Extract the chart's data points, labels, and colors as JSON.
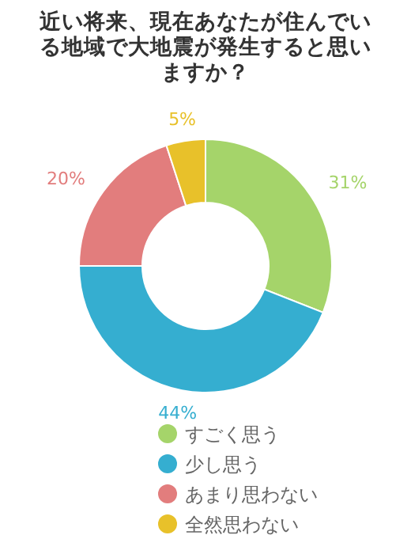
{
  "chart_data": {
    "type": "donut",
    "title": "近い将来、現在あなたが住んでいる地域で大地震が発生すると思いますか？",
    "categories": [
      "すごく思う",
      "少し思う",
      "あまり思わない",
      "全然思わない"
    ],
    "values": [
      31,
      44,
      20,
      5
    ],
    "colors": [
      "#a5d46a",
      "#35aed0",
      "#e27d7d",
      "#e8c12a"
    ],
    "value_labels": [
      "31%",
      "44%",
      "20%",
      "5%"
    ],
    "legend": "bottom"
  }
}
